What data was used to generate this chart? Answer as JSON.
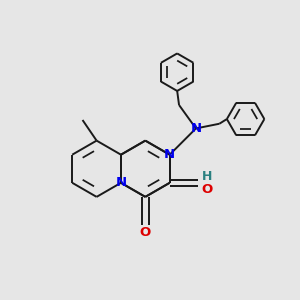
{
  "background_color": "#e6e6e6",
  "bond_color": "#1a1a1a",
  "N_color": "#0000ee",
  "O_color": "#dd0000",
  "H_color": "#2a8080",
  "lw": 1.4,
  "dbg": 0.038,
  "xlim": [
    0.0,
    3.2
  ],
  "ylim": [
    0.0,
    3.2
  ]
}
